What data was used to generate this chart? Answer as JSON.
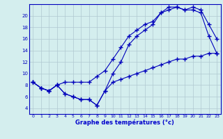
{
  "bg_color": "#d4eeee",
  "line_color": "#0000bb",
  "grid_color": "#b0c8d0",
  "xlabel": "Graphe des températures (°c)",
  "xlabel_color": "#0000cc",
  "ylim": [
    3,
    22
  ],
  "xlim": [
    -0.5,
    23.5
  ],
  "yticks": [
    4,
    6,
    8,
    10,
    12,
    14,
    16,
    18,
    20
  ],
  "xticks": [
    0,
    1,
    2,
    3,
    4,
    5,
    6,
    7,
    8,
    9,
    10,
    11,
    12,
    13,
    14,
    15,
    16,
    17,
    18,
    19,
    20,
    21,
    22,
    23
  ],
  "line1_x": [
    0,
    1,
    2,
    3,
    4,
    5,
    6,
    7,
    8,
    9,
    10,
    11,
    12,
    13,
    14,
    15,
    16,
    17,
    18,
    19,
    20,
    21,
    22,
    23
  ],
  "line1_y": [
    8.5,
    7.5,
    7.0,
    8.0,
    8.5,
    8.5,
    8.5,
    8.5,
    9.5,
    10.5,
    12.5,
    14.5,
    16.5,
    17.5,
    18.5,
    19.0,
    20.5,
    21.5,
    21.5,
    21.0,
    21.5,
    21.0,
    18.5,
    16.0
  ],
  "line2_x": [
    0,
    1,
    2,
    3,
    4,
    5,
    6,
    7,
    8,
    9,
    10,
    11,
    12,
    13,
    14,
    15,
    16,
    17,
    18,
    19,
    20,
    21,
    22,
    23
  ],
  "line2_y": [
    8.5,
    7.5,
    7.0,
    8.0,
    6.5,
    6.0,
    5.5,
    5.5,
    4.5,
    7.0,
    10.0,
    12.0,
    15.0,
    16.5,
    17.5,
    18.5,
    20.5,
    21.0,
    21.5,
    21.0,
    21.0,
    20.5,
    16.5,
    13.5
  ],
  "line3_x": [
    0,
    1,
    2,
    3,
    4,
    5,
    6,
    7,
    8,
    9,
    10,
    11,
    12,
    13,
    14,
    15,
    16,
    17,
    18,
    19,
    20,
    21,
    22,
    23
  ],
  "line3_y": [
    8.5,
    7.5,
    7.0,
    8.0,
    6.5,
    6.0,
    5.5,
    5.5,
    4.5,
    7.0,
    8.5,
    9.0,
    9.5,
    10.0,
    10.5,
    11.0,
    11.5,
    12.0,
    12.5,
    12.5,
    13.0,
    13.0,
    13.5,
    13.5
  ]
}
